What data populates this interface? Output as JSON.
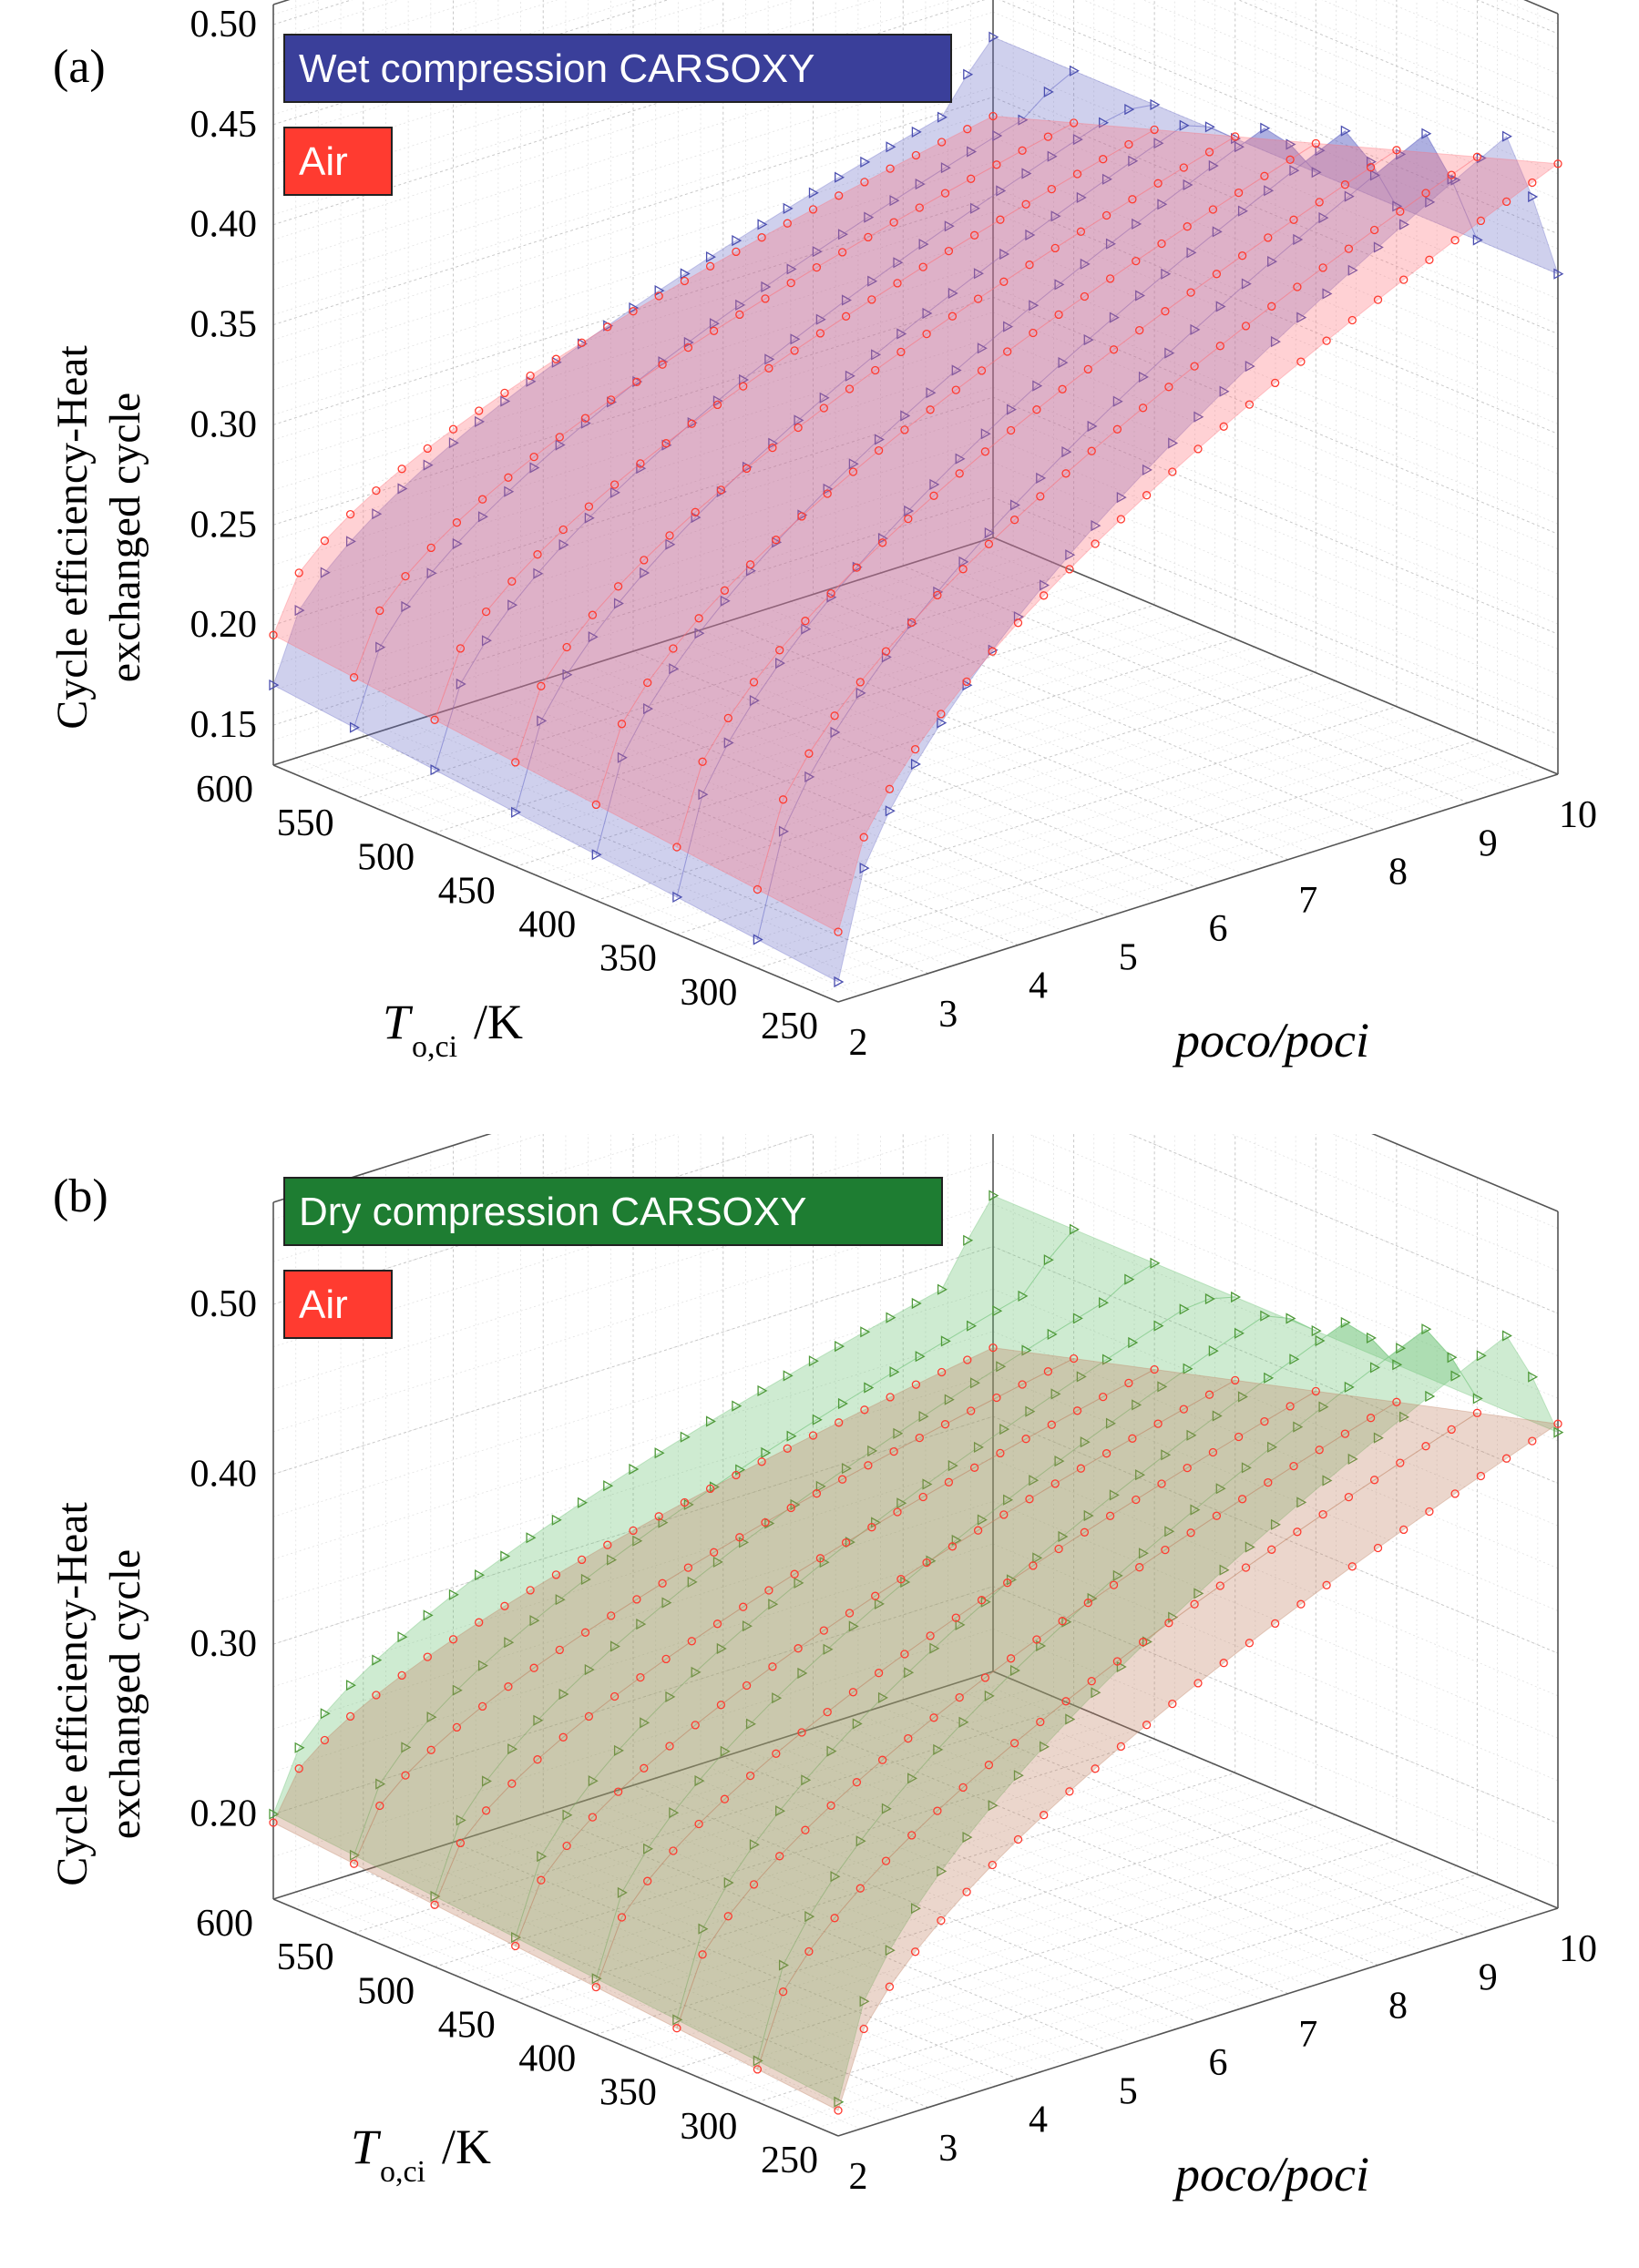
{
  "chart_data": [
    {
      "type": "surface3d",
      "panel_label": "(a)",
      "zlabel_lines": [
        "Cycle efficiency-Heat",
        "exchanged cycle"
      ],
      "xlabel": "poco/poci",
      "ylabel_main": "T",
      "ylabel_sub": "o,ci",
      "ylabel_unit": "/K",
      "x_ticks": [
        "2",
        "3",
        "4",
        "5",
        "6",
        "7",
        "8",
        "9",
        "10"
      ],
      "y_ticks": [
        "600",
        "550",
        "500",
        "450",
        "400",
        "350",
        "300",
        "250"
      ],
      "z_ticks": [
        "0.15",
        "0.20",
        "0.25",
        "0.30",
        "0.35",
        "0.40",
        "0.45",
        "0.50"
      ],
      "xlim": [
        2,
        10
      ],
      "ylim": [
        250,
        600
      ],
      "zlim": [
        0.13,
        0.51
      ],
      "z_tick_values": [
        0.15,
        0.2,
        0.25,
        0.3,
        0.35,
        0.4,
        0.45,
        0.5
      ],
      "legend": [
        {
          "label": "Wet compression CARSOXY",
          "color": "#3a3f9a"
        },
        {
          "label": "Air",
          "color": "#ff3b30"
        }
      ],
      "series": [
        {
          "name": "Wet compression CARSOXY",
          "marker": "triangle",
          "color": "#4b4fb0",
          "fill": "#6a6ec8",
          "low_z": 0.14,
          "high_z": 0.47,
          "end_z": 0.38
        },
        {
          "name": "Air",
          "marker": "circle",
          "color": "#ff3b30",
          "fill": "#ff6f78",
          "low_z": 0.165,
          "high_z": 0.435,
          "end_z": 0.435
        }
      ]
    },
    {
      "type": "surface3d",
      "panel_label": "(b)",
      "zlabel_lines": [
        "Cycle efficiency-Heat",
        "exchanged cycle"
      ],
      "xlabel": "poco/poci",
      "ylabel_main": "T",
      "ylabel_sub": "o,ci",
      "ylabel_unit": "/K",
      "x_ticks": [
        "2",
        "3",
        "4",
        "5",
        "6",
        "7",
        "8",
        "9",
        "10"
      ],
      "y_ticks": [
        "600",
        "550",
        "500",
        "450",
        "400",
        "350",
        "300",
        "250"
      ],
      "z_ticks": [
        "0.20",
        "0.30",
        "0.40",
        "0.50"
      ],
      "xlim": [
        2,
        10
      ],
      "ylim": [
        250,
        600
      ],
      "zlim": [
        0.15,
        0.56
      ],
      "z_tick_values": [
        0.2,
        0.3,
        0.4,
        0.5
      ],
      "legend": [
        {
          "label": "Dry compression CARSOXY",
          "color": "#1e7d32"
        },
        {
          "label": "Air",
          "color": "#ff3b30"
        }
      ],
      "series": [
        {
          "name": "Dry compression CARSOXY",
          "marker": "triangle",
          "color": "#4f9a3a",
          "fill": "#66c070",
          "low_z": 0.17,
          "high_z": 0.51,
          "end_z": 0.43
        },
        {
          "name": "Air",
          "marker": "circle",
          "color": "#ff3b30",
          "fill": "#c08060",
          "low_z": 0.165,
          "high_z": 0.435,
          "end_z": 0.435
        }
      ]
    }
  ]
}
